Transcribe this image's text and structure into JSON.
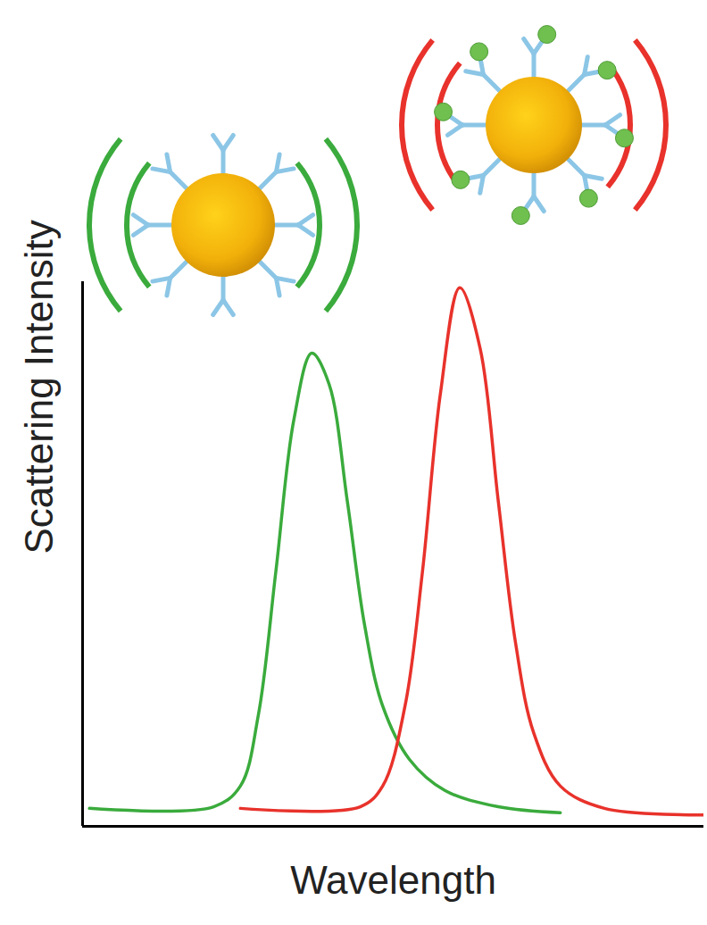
{
  "chart_data": {
    "type": "line",
    "xlabel": "Wavelength",
    "ylabel": "Scattering Intensity",
    "xlim": [
      0,
      100
    ],
    "ylim": [
      0,
      100
    ],
    "xticks": [],
    "yticks": [],
    "tick_labels": false,
    "grid": false,
    "series": [
      {
        "color": "#3aab3c",
        "x": [
          1.1,
          21.1,
          25.4,
          28.3,
          31.1,
          34.0,
          36.9,
          39.7,
          42.6,
          45.4,
          48.3,
          52.6,
          58.3,
          66.9,
          76.9
        ],
        "values": [
          3.3,
          3.6,
          7.4,
          20.5,
          46.7,
          74.6,
          86.9,
          81.1,
          59.8,
          36.9,
          22.1,
          12.3,
          6.6,
          3.6,
          2.5
        ]
      },
      {
        "color": "#e8322b",
        "x": [
          25.4,
          44.7,
          48.3,
          51.9,
          54.7,
          57.6,
          60.7,
          64.0,
          66.9,
          69.7,
          72.6,
          76.9,
          84.0,
          100
        ],
        "values": [
          3.3,
          3.6,
          7.4,
          22.1,
          46.7,
          79.5,
          98.9,
          87.7,
          59.8,
          33.6,
          17.2,
          7.4,
          3.3,
          2.1
        ]
      }
    ]
  }
}
